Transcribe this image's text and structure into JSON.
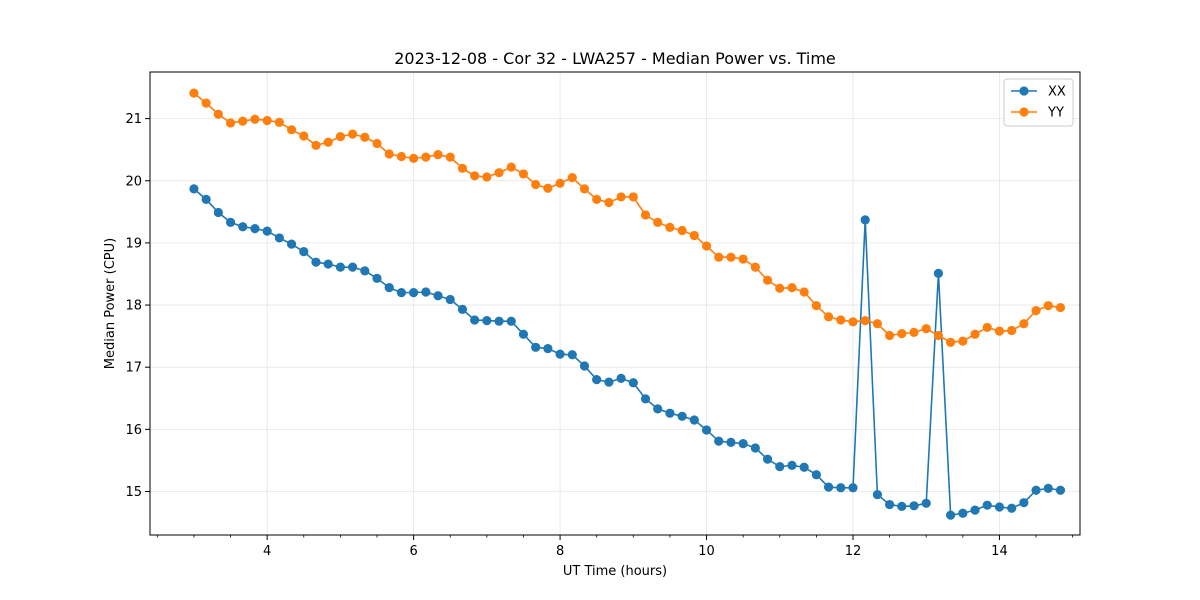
{
  "chart_data": {
    "type": "line",
    "title": "2023-12-08 - Cor 32 - LWA257 - Median Power vs. Time",
    "xlabel": "UT Time (hours)",
    "ylabel": "Median Power (CPU)",
    "xlim": [
      2.4,
      15.1
    ],
    "ylim": [
      14.3,
      21.75
    ],
    "xticks": [
      4,
      6,
      8,
      10,
      12,
      14
    ],
    "xtick_labels": [
      "4",
      "6",
      "8",
      "10",
      "12",
      "14"
    ],
    "yticks": [
      15,
      16,
      17,
      18,
      19,
      20,
      21
    ],
    "ytick_labels": [
      "15",
      "16",
      "17",
      "18",
      "19",
      "20",
      "21"
    ],
    "grid": true,
    "legend_position": "top-right",
    "x": [
      3.0,
      3.1667,
      3.3333,
      3.5,
      3.6667,
      3.8333,
      4.0,
      4.1667,
      4.3333,
      4.5,
      4.6667,
      4.8333,
      5.0,
      5.1667,
      5.3333,
      5.5,
      5.6667,
      5.8333,
      6.0,
      6.1667,
      6.3333,
      6.5,
      6.6667,
      6.8333,
      7.0,
      7.1667,
      7.3333,
      7.5,
      7.6667,
      7.8333,
      8.0,
      8.1667,
      8.3333,
      8.5,
      8.6667,
      8.8333,
      9.0,
      9.1667,
      9.3333,
      9.5,
      9.6667,
      9.8333,
      10.0,
      10.1667,
      10.3333,
      10.5,
      10.6667,
      10.8333,
      11.0,
      11.1667,
      11.3333,
      11.5,
      11.6667,
      11.8333,
      12.0,
      12.1667,
      12.3333,
      12.5,
      12.6667,
      12.8333,
      13.0,
      13.1667,
      13.3333,
      13.5,
      13.6667,
      13.8333,
      14.0,
      14.1667,
      14.3333,
      14.5,
      14.6667,
      14.8333
    ],
    "series": [
      {
        "name": "XX",
        "color": "#1f77b4",
        "values": [
          19.87,
          19.7,
          19.49,
          19.33,
          19.26,
          19.23,
          19.19,
          19.08,
          18.98,
          18.86,
          18.69,
          18.66,
          18.61,
          18.61,
          18.55,
          18.43,
          18.28,
          18.2,
          18.2,
          18.21,
          18.15,
          18.09,
          17.93,
          17.76,
          17.75,
          17.74,
          17.74,
          17.53,
          17.32,
          17.3,
          17.21,
          17.2,
          17.02,
          16.8,
          16.76,
          16.82,
          16.75,
          16.49,
          16.33,
          16.26,
          16.21,
          16.15,
          15.99,
          15.81,
          15.79,
          15.77,
          15.7,
          15.52,
          15.4,
          15.42,
          15.39,
          15.27,
          15.07,
          15.06,
          15.06,
          19.37,
          14.95,
          14.79,
          14.76,
          14.77,
          14.81,
          18.51,
          14.62,
          14.65,
          14.7,
          14.78,
          14.75,
          14.73,
          14.82,
          15.02,
          15.05,
          15.02
        ]
      },
      {
        "name": "YY",
        "color": "#ff7f0e",
        "values": [
          21.41,
          21.25,
          21.07,
          20.93,
          20.96,
          20.99,
          20.97,
          20.94,
          20.82,
          20.72,
          20.57,
          20.62,
          20.71,
          20.75,
          20.7,
          20.6,
          20.43,
          20.39,
          20.36,
          20.38,
          20.42,
          20.38,
          20.2,
          20.08,
          20.06,
          20.13,
          20.22,
          20.11,
          19.94,
          19.88,
          19.96,
          20.05,
          19.87,
          19.7,
          19.65,
          19.74,
          19.74,
          19.45,
          19.33,
          19.25,
          19.2,
          19.12,
          18.95,
          18.77,
          18.77,
          18.74,
          18.61,
          18.4,
          18.27,
          18.28,
          18.21,
          17.99,
          17.81,
          17.76,
          17.73,
          17.75,
          17.7,
          17.51,
          17.54,
          17.56,
          17.62,
          17.51,
          17.4,
          17.42,
          17.53,
          17.64,
          17.58,
          17.59,
          17.7,
          17.91,
          17.99,
          17.96
        ]
      }
    ]
  }
}
